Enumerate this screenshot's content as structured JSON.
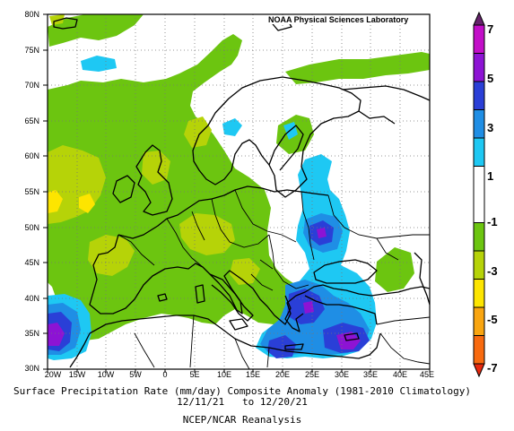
{
  "credit": "NOAA Physical Sciences Laboratory",
  "title_line1": "Surface Precipitation Rate (mm/day) Composite Anomaly (1981-2010 Climatology)",
  "title_line2": "12/11/21   to 12/20/21",
  "title_line3": "NCEP/NCAR Reanalysis",
  "lat_labels": [
    "80N",
    "75N",
    "70N",
    "65N",
    "60N",
    "55N",
    "50N",
    "45N",
    "40N",
    "35N",
    "30N"
  ],
  "lon_labels": [
    "20W",
    "15W",
    "10W",
    "5W",
    "0",
    "5E",
    "10E",
    "15E",
    "20E",
    "25E",
    "30E",
    "35E",
    "40E",
    "45E"
  ],
  "colorbar": {
    "tick_labels": [
      "7",
      "5",
      "3",
      "1",
      "-1",
      "-3",
      "-5",
      "-7"
    ],
    "levels": [
      {
        "from": "-7",
        "to": "-6",
        "color": "#e8280d"
      },
      {
        "from": "-6",
        "to": "-5",
        "color": "#f86a0f"
      },
      {
        "from": "-5",
        "to": "-4",
        "color": "#f9a510"
      },
      {
        "from": "-4",
        "to": "-3",
        "color": "#fde500"
      },
      {
        "from": "-3",
        "to": "-2",
        "color": "#b6d308"
      },
      {
        "from": "-2",
        "to": "-1",
        "color": "#6cc510"
      },
      {
        "from": "-1",
        "to": "1",
        "color": "#ffffff"
      },
      {
        "from": "1",
        "to": "2",
        "color": "#1ec8f3"
      },
      {
        "from": "2",
        "to": "3",
        "color": "#1f8ee5"
      },
      {
        "from": "3",
        "to": "4",
        "color": "#2a3fd7"
      },
      {
        "from": "4",
        "to": "5",
        "color": "#8d13d4"
      },
      {
        "from": "5",
        "to": "6",
        "color": "#c20ec8"
      },
      {
        "from": "6",
        "to": "7",
        "color": "#66226c"
      }
    ]
  },
  "map": {
    "projection": "equirectangular",
    "lon_range": [
      "20W",
      "45E"
    ],
    "lat_range": [
      "30N",
      "80N"
    ],
    "gridlines": "dotted every 5 degrees",
    "dominant_anomalies": [
      {
        "region": "Western & Central Europe, North Atlantic",
        "sign": "dry",
        "color": "#6cc510"
      },
      {
        "region": "Bay of Biscay / Spain / UK patches",
        "sign": "dry",
        "color": "#b6d308"
      },
      {
        "region": "Eastern Mediterranean / Turkey",
        "sign": "wet",
        "color": "#2a3fd7"
      },
      {
        "region": "Ukraine / Black Sea north",
        "sign": "wet",
        "color": "#2a3fd7"
      },
      {
        "region": "off Morocco (35N 18W)",
        "sign": "wet",
        "color": "#8d13d4"
      }
    ]
  }
}
